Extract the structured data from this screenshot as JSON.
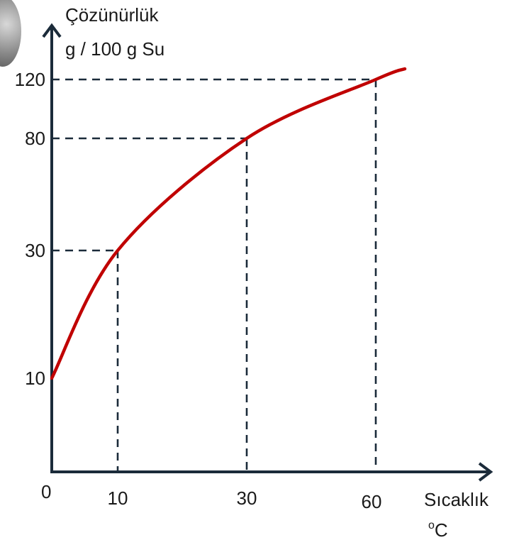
{
  "chart_data": {
    "type": "line",
    "ylabel_line1": "Çözünürlük",
    "ylabel_line2": "g / 100 g Su",
    "xlabel_line1": "Sıcaklık",
    "xlabel_line2": "oC",
    "origin_label": "0",
    "x_ticks": [
      10,
      30,
      60
    ],
    "y_ticks": [
      10,
      30,
      80,
      120
    ],
    "x_ticks_labels": [
      "10",
      "30",
      "60"
    ],
    "y_ticks_labels": [
      "10",
      "30",
      "80",
      "120"
    ],
    "series": [
      {
        "color": "#c00000",
        "points": [
          {
            "x": 0,
            "y": 10
          },
          {
            "x": 10,
            "y": 30
          },
          {
            "x": 30,
            "y": 80
          },
          {
            "x": 60,
            "y": 120
          }
        ]
      }
    ],
    "guides": [
      {
        "x": 10,
        "y": 30
      },
      {
        "x": 30,
        "y": 80
      },
      {
        "x": 60,
        "y": 120
      }
    ],
    "grid": false
  }
}
